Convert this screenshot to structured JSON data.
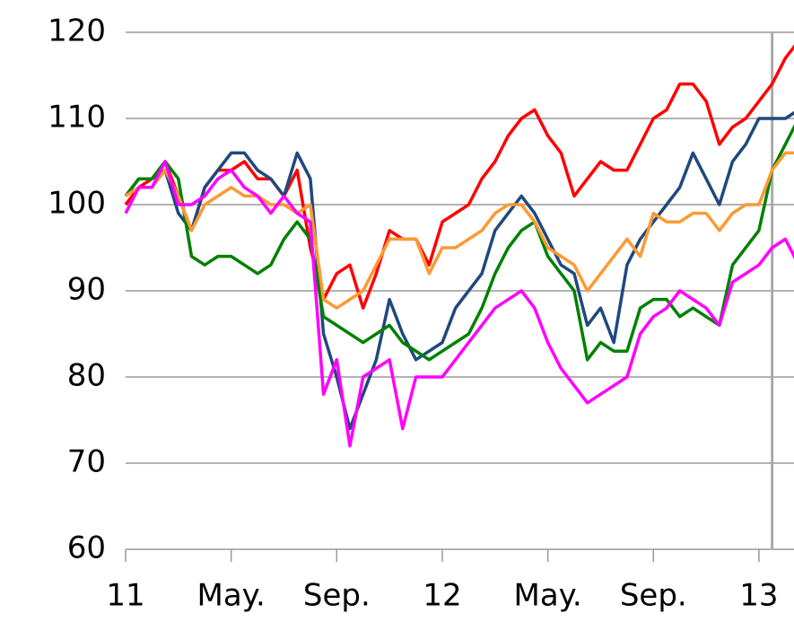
{
  "chart_data": {
    "type": "line",
    "x": [
      0,
      0.5,
      1,
      1.5,
      2,
      2.5,
      3,
      3.5,
      4,
      4.5,
      5,
      5.5,
      6,
      6.5,
      7,
      7.5,
      8,
      8.5,
      9,
      9.5,
      10,
      10.5,
      11,
      11.5,
      12,
      12.5,
      13,
      13.5,
      14,
      14.5,
      15,
      15.5,
      16,
      16.5,
      17,
      17.5,
      18,
      18.5,
      19,
      19.5,
      20,
      20.5,
      21,
      21.5,
      22,
      22.5,
      23,
      23.5,
      24,
      24.5,
      25,
      25.5
    ],
    "series": [
      {
        "color": "#ff0000",
        "values": [
          100,
          102,
          103,
          105,
          101,
          97,
          102,
          104,
          104,
          105,
          103,
          103,
          101,
          104,
          95,
          89,
          92,
          93,
          88,
          92,
          97,
          96,
          96,
          93,
          98,
          99,
          100,
          103,
          105,
          108,
          110,
          111,
          108,
          106,
          101,
          103,
          105,
          104,
          104,
          107,
          110,
          111,
          114,
          114,
          112,
          107,
          109,
          110,
          112,
          114,
          117,
          119
        ]
      },
      {
        "color": "#1f497d",
        "values": [
          101,
          103,
          103,
          104,
          99,
          97,
          102,
          104,
          106,
          106,
          104,
          103,
          101,
          106,
          103,
          85,
          80,
          74,
          78,
          82,
          89,
          85,
          82,
          83,
          84,
          88,
          90,
          92,
          97,
          99,
          101,
          99,
          96,
          93,
          92,
          86,
          88,
          84,
          93,
          96,
          98,
          100,
          102,
          106,
          103,
          100,
          105,
          107,
          110,
          110,
          110,
          111
        ]
      },
      {
        "color": "#008000",
        "values": [
          101,
          103,
          103,
          105,
          103,
          94,
          93,
          94,
          94,
          93,
          92,
          93,
          96,
          98,
          96,
          87,
          86,
          85,
          84,
          85,
          86,
          84,
          83,
          82,
          83,
          84,
          85,
          88,
          92,
          95,
          97,
          98,
          94,
          92,
          90,
          82,
          84,
          83,
          83,
          88,
          89,
          89,
          87,
          88,
          87,
          86,
          93,
          95,
          97,
          104,
          107,
          110
        ]
      },
      {
        "color": "#ff9933",
        "values": [
          101,
          102,
          102,
          104,
          101,
          97,
          100,
          101,
          102,
          101,
          101,
          100,
          100,
          99,
          100,
          89,
          88,
          89,
          90,
          93,
          96,
          96,
          96,
          92,
          95,
          95,
          96,
          97,
          99,
          100,
          100,
          98,
          95,
          94,
          93,
          90,
          92,
          94,
          96,
          94,
          99,
          98,
          98,
          99,
          99,
          97,
          99,
          100,
          100,
          104,
          106,
          106
        ]
      },
      {
        "color": "#ff00ff",
        "values": [
          99,
          102,
          102,
          105,
          100,
          100,
          101,
          103,
          104,
          102,
          101,
          99,
          101,
          99,
          98,
          78,
          82,
          72,
          80,
          81,
          82,
          74,
          80,
          80,
          80,
          82,
          84,
          86,
          88,
          89,
          90,
          88,
          84,
          81,
          79,
          77,
          78,
          79,
          80,
          85,
          87,
          88,
          90,
          89,
          88,
          86,
          91,
          92,
          93,
          95,
          96,
          93
        ]
      }
    ],
    "xlim": [
      0,
      25.6
    ],
    "xticks": [
      {
        "value": 0,
        "label": "11"
      },
      {
        "value": 4,
        "label": "May."
      },
      {
        "value": 8,
        "label": "Sep."
      },
      {
        "value": 12,
        "label": "12"
      },
      {
        "value": 16,
        "label": "May."
      },
      {
        "value": 20,
        "label": "Sep."
      },
      {
        "value": 24,
        "label": "13"
      }
    ],
    "ylim": [
      60,
      120
    ],
    "yticks": [
      60,
      70,
      80,
      90,
      100,
      110,
      120
    ],
    "grid": true,
    "vline": 24.5
  }
}
